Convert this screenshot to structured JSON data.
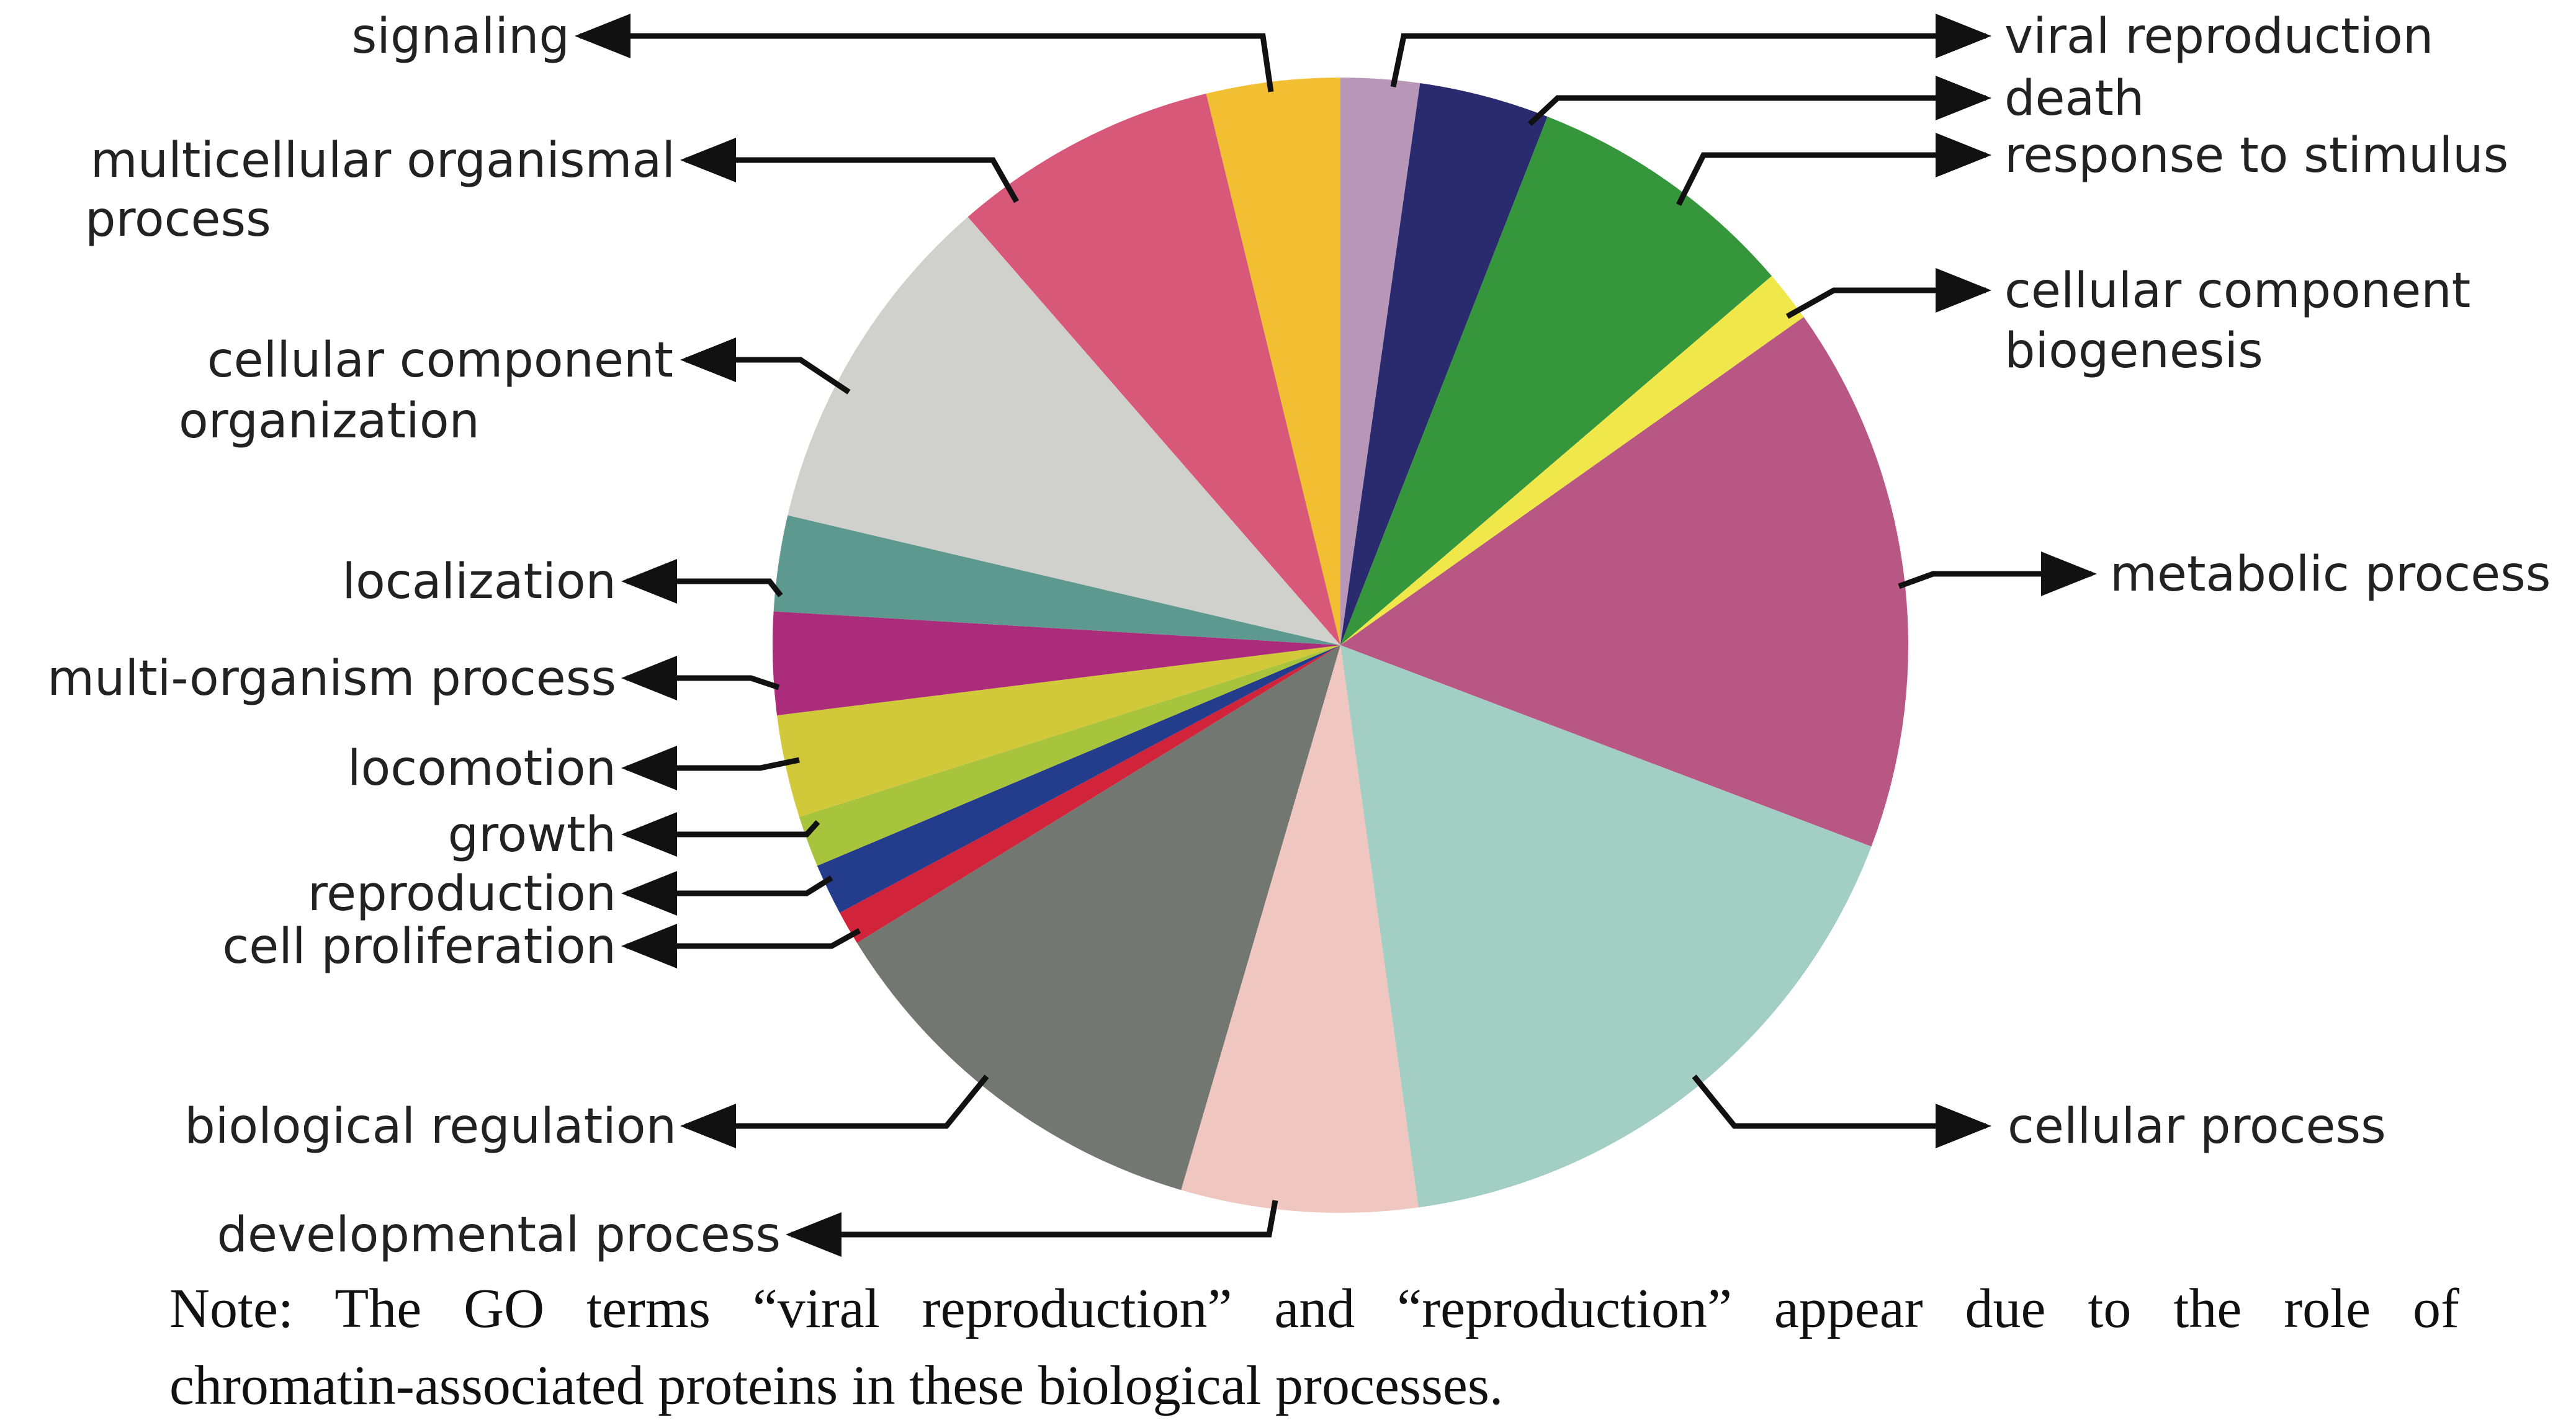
{
  "chart_data": {
    "type": "pie",
    "title": "",
    "slices": [
      {
        "label": "viral reproduction",
        "value": 2.3,
        "color": "#b896b8"
      },
      {
        "label": "death",
        "value": 3.8,
        "color": "#2a2a6e"
      },
      {
        "label": "response to stimulus",
        "value": 8.0,
        "color": "#35963c"
      },
      {
        "label": "cellular component biogenesis",
        "value": 1.5,
        "color": "#f0e84a"
      },
      {
        "label": "metabolic process",
        "value": 16.0,
        "color": "#b85684"
      },
      {
        "label": "cellular process",
        "value": 17.5,
        "color": "#a3cec4"
      },
      {
        "label": "developmental process",
        "value": 6.9,
        "color": "#f0c6c0"
      },
      {
        "label": "biological regulation",
        "value": 12.0,
        "color": "#727771"
      },
      {
        "label": "cell proliferation",
        "value": 1.0,
        "color": "#d1233a"
      },
      {
        "label": "reproduction",
        "value": 1.5,
        "color": "#233d8c"
      },
      {
        "label": "growth",
        "value": 1.5,
        "color": "#a8c43c"
      },
      {
        "label": "locomotion",
        "value": 3.0,
        "color": "#d1c83a"
      },
      {
        "label": "multi-organism process",
        "value": 3.0,
        "color": "#ab2c7a"
      },
      {
        "label": "localization",
        "value": 2.8,
        "color": "#5e9990"
      },
      {
        "label": "cellular component organization",
        "value": 10.2,
        "color": "#d0d0cc"
      },
      {
        "label": "multicellular organismal process",
        "value": 7.8,
        "color": "#d8587a"
      },
      {
        "label": "signaling",
        "value": 3.9,
        "color": "#f2bf32"
      }
    ]
  },
  "labels": {
    "viral_reproduction": "viral reproduction",
    "death": "death",
    "response_to_stimulus": "response to stimulus",
    "cellular_component_biogenesis_1": "cellular component",
    "cellular_component_biogenesis_2": "biogenesis",
    "metabolic_process": "metabolic process",
    "cellular_process": "cellular process",
    "developmental_process": "developmental process",
    "biological_regulation": "biological regulation",
    "cell_proliferation": "cell proliferation",
    "reproduction": "reproduction",
    "growth": "growth",
    "locomotion": "locomotion",
    "multi_organism_process": "multi-organism process",
    "localization": "localization",
    "cellular_component_organization_1": "cellular component",
    "cellular_component_organization_2": "organization",
    "multicellular_organismal_process_1": "multicellular organismal",
    "multicellular_organismal_process_2": "process",
    "signaling": "signaling"
  },
  "note": {
    "line1": "Note: The GO terms “viral reproduction” and “reproduction” appear due to the role of",
    "line2": "chromatin-associated proteins in these biological processes."
  }
}
